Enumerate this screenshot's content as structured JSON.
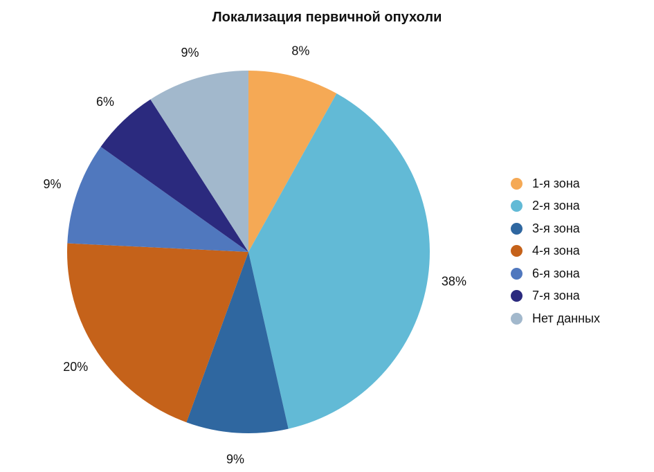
{
  "chart_data": {
    "type": "pie",
    "title": "Локализация первичной опухоли",
    "slices": [
      {
        "label": "1-я зона",
        "value": 8,
        "value_label": "8%",
        "color": "#F5A955"
      },
      {
        "label": "2-я зона",
        "value": 38,
        "value_label": "38%",
        "color": "#62BAD6"
      },
      {
        "label": "3-я зона",
        "value": 9,
        "value_label": "9%",
        "color": "#2F67A0"
      },
      {
        "label": "4-я зона",
        "value": 20,
        "value_label": "20%",
        "color": "#C5621A"
      },
      {
        "label": "6-я зона",
        "value": 9,
        "value_label": "9%",
        "color": "#5078BE"
      },
      {
        "label": "7-я зона",
        "value": 6,
        "value_label": "6%",
        "color": "#2B2A7E"
      },
      {
        "label": "Нет данных",
        "value": 9,
        "value_label": "9%",
        "color": "#A2B8CC"
      }
    ],
    "legend_position": "right"
  }
}
